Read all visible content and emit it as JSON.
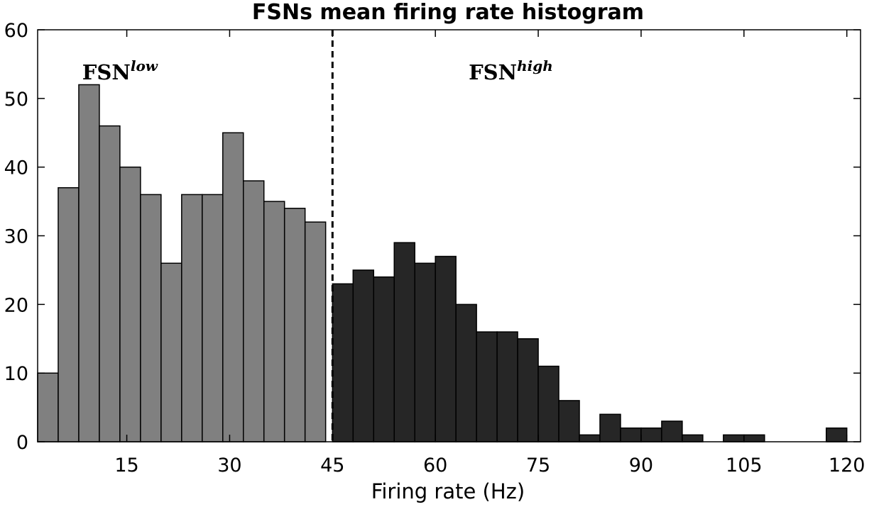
{
  "chart_data": {
    "type": "bar",
    "title": "FSNs mean firing rate histogram",
    "xlabel": "Firing rate (Hz)",
    "ylabel": "",
    "xlim": [
      2,
      122
    ],
    "ylim": [
      0,
      60
    ],
    "bin_width": 3,
    "x_ticks": [
      15,
      30,
      45,
      60,
      75,
      90,
      105,
      120
    ],
    "x_tick_labels": [
      "15",
      "30",
      "45",
      "60",
      "75",
      "90",
      "105",
      "120"
    ],
    "y_ticks": [
      0,
      10,
      20,
      30,
      40,
      50,
      60
    ],
    "y_tick_labels": [
      "0",
      "10",
      "20",
      "30",
      "40",
      "50",
      "60"
    ],
    "threshold": 45,
    "grid": false,
    "series": [
      {
        "name": "FSN low",
        "color": "#808080",
        "bin_left_edges": [
          2,
          5,
          8,
          11,
          14,
          17,
          20,
          23,
          26,
          29,
          32,
          35,
          38,
          41
        ],
        "values": [
          10,
          37,
          52,
          46,
          40,
          36,
          26,
          36,
          36,
          45,
          38,
          35,
          34,
          32
        ]
      },
      {
        "name": "FSN high",
        "color": "#262626",
        "bin_left_edges": [
          45,
          48,
          51,
          54,
          57,
          60,
          63,
          66,
          69,
          72,
          75,
          78,
          81,
          84,
          87,
          90,
          93,
          96,
          99,
          102,
          105,
          108,
          111,
          114,
          117
        ],
        "values": [
          23,
          25,
          24,
          29,
          26,
          27,
          20,
          16,
          16,
          15,
          11,
          6,
          1,
          4,
          2,
          2,
          3,
          1,
          0,
          1,
          1,
          0,
          0,
          0,
          2
        ]
      }
    ],
    "annotations": [
      {
        "text": "FSN",
        "superscript": "low",
        "x": 14
      },
      {
        "text": "FSN",
        "superscript": "high",
        "x": 71
      }
    ]
  }
}
